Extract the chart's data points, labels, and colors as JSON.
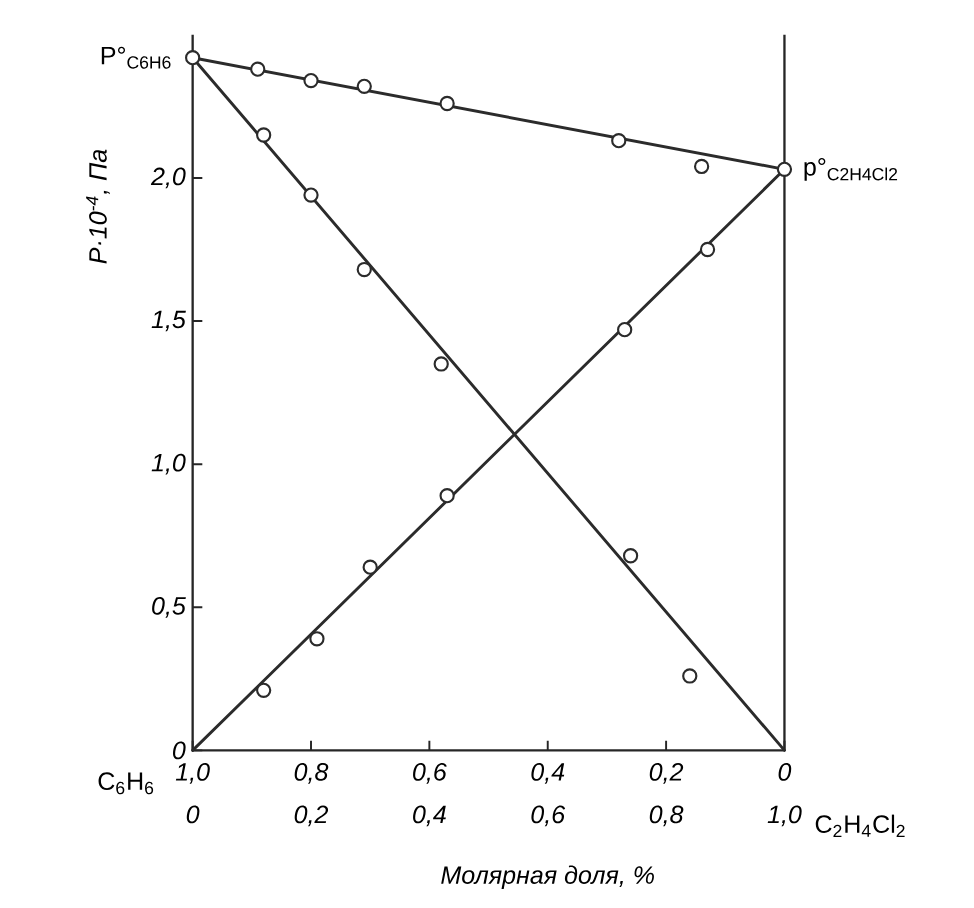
{
  "chart_data": {
    "type": "scatter",
    "xlabel": "Молярная доля, %",
    "ylabel": "P·10$^{-4}$, Па",
    "x2label": "C$_{6}$H$_{6}$",
    "annotations": [
      {
        "text": "P°$_{C6H6}$",
        "x": 0,
        "y": 2.42
      },
      {
        "text": "p°$_{C2H4Cl2}$",
        "x": 1,
        "y": 2.03
      },
      "C$_{2}$H$_{4}$Cl$_{2}$"
    ],
    "xlim": [
      0,
      1
    ],
    "xticks": [
      0,
      {
        "value": 0.2,
        "label": "0,2"
      },
      {
        "value": 0.4,
        "label": "0,4"
      },
      {
        "value": 0.6,
        "label": "0,6"
      },
      {
        "value": 0.8,
        "label": "0,8"
      },
      {
        "value": 1,
        "label": "1,0"
      }
    ],
    "x2lim": [
      1,
      0
    ],
    "x2ticks": [
      {
        "value": 1,
        "label": "1,0"
      },
      {
        "value": 0.8,
        "label": "0,8"
      },
      {
        "value": 0.6,
        "label": "0,6"
      },
      {
        "value": 0.4,
        "label": "0,4"
      },
      {
        "value": 0.2,
        "label": "0,2"
      },
      0
    ],
    "ylim": [
      0,
      2.5
    ],
    "yticks": [
      0,
      {
        "value": 0.5,
        "label": "0,5"
      },
      {
        "value": 1,
        "label": "1,0"
      },
      {
        "value": 1.5,
        "label": "1,5"
      },
      {
        "value": 2,
        "label": "2,0"
      }
    ],
    "marker": "circle",
    "series": [
      {
        "type": "line",
        "marker": "none",
        "color": "#2b2b2b",
        "x": [
          0,
          1
        ],
        "values": [
          2.42,
          2.03
        ]
      },
      {
        "type": "line",
        "marker": "none",
        "color": "#2b2b2b",
        "x": [
          0,
          1
        ],
        "values": [
          2.42,
          0
        ]
      },
      {
        "type": "line",
        "marker": "none",
        "color": "#2b2b2b",
        "x": [
          0,
          1
        ],
        "values": [
          0,
          2.03
        ]
      },
      {
        "color": "#2b2b2b",
        "x": [
          0,
          0.11,
          0.2,
          0.29,
          0.43,
          0.72,
          0.86,
          1
        ],
        "values": [
          2.42,
          2.38,
          2.34,
          2.32,
          2.26,
          2.13,
          2.04,
          2.03
        ]
      },
      {
        "color": "#2b2b2b",
        "x": [
          0.12,
          0.2,
          0.29,
          0.42,
          0.74,
          0.84
        ],
        "values": [
          2.15,
          1.94,
          1.68,
          1.35,
          0.68,
          0.26
        ]
      },
      {
        "color": "#2b2b2b",
        "x": [
          0.12,
          0.21,
          0.3,
          0.43,
          0.73,
          0.87
        ],
        "values": [
          0.21,
          0.39,
          0.64,
          0.89,
          1.47,
          1.75
        ]
      }
    ]
  }
}
